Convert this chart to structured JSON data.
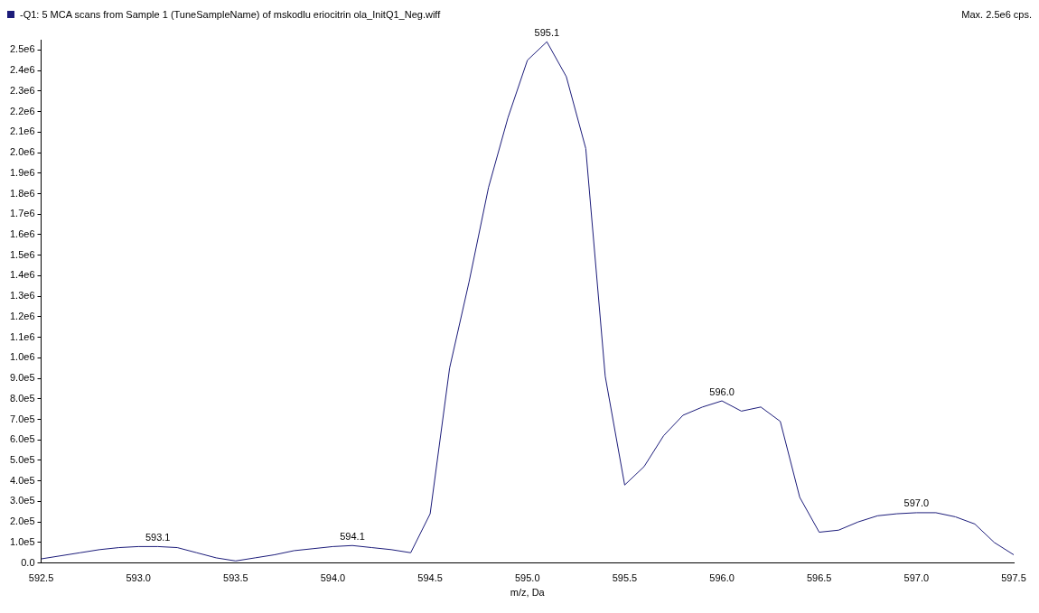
{
  "chart_data": {
    "type": "line",
    "title": "-Q1: 5 MCA scans from Sample 1 (TuneSampleName) of mskodlu eriocitrin ola_InitQ1_Neg.wiff",
    "xlabel": "m/z, Da",
    "x": [
      592.5,
      592.6,
      592.7,
      592.8,
      592.9,
      593.0,
      593.1,
      593.2,
      593.3,
      593.4,
      593.5,
      593.6,
      593.7,
      593.8,
      593.9,
      594.0,
      594.1,
      594.2,
      594.3,
      594.4,
      594.5,
      594.6,
      594.7,
      594.8,
      594.9,
      595.0,
      595.1,
      595.2,
      595.3,
      595.4,
      595.5,
      595.6,
      595.7,
      595.8,
      595.9,
      596.0,
      596.1,
      596.2,
      596.3,
      596.4,
      596.5,
      596.6,
      596.7,
      596.8,
      596.9,
      597.0,
      597.1,
      597.2,
      597.3,
      597.4,
      597.5
    ],
    "series": [
      {
        "color": "#1c1c7a",
        "values": [
          20000,
          35000,
          50000,
          65000,
          75000,
          80000,
          80000,
          75000,
          50000,
          25000,
          10000,
          25000,
          40000,
          60000,
          70000,
          80000,
          85000,
          75000,
          65000,
          50000,
          240000,
          950000,
          1370000,
          1830000,
          2170000,
          2450000,
          2540000,
          2370000,
          2020000,
          910000,
          380000,
          470000,
          620000,
          720000,
          760000,
          790000,
          740000,
          760000,
          690000,
          320000,
          150000,
          160000,
          200000,
          230000,
          240000,
          245000,
          245000,
          225000,
          190000,
          100000,
          40000
        ]
      }
    ],
    "xlim": [
      592.5,
      597.5
    ],
    "xticks": [
      592.5,
      {
        "value": 593,
        "label": "593.0"
      },
      593.5,
      {
        "value": 594,
        "label": "594.0"
      },
      594.5,
      {
        "value": 595,
        "label": "595.0"
      },
      595.5,
      {
        "value": 596,
        "label": "596.0"
      },
      596.5,
      {
        "value": 597,
        "label": "597.0"
      },
      597.5
    ],
    "ylim": [
      0,
      2550000
    ],
    "yticks": [
      {
        "value": 0,
        "label": "0.0"
      },
      {
        "value": 100000,
        "label": "1.0e5"
      },
      {
        "value": 200000,
        "label": "2.0e5"
      },
      {
        "value": 300000,
        "label": "3.0e5"
      },
      {
        "value": 400000,
        "label": "4.0e5"
      },
      {
        "value": 500000,
        "label": "5.0e5"
      },
      {
        "value": 600000,
        "label": "6.0e5"
      },
      {
        "value": 700000,
        "label": "7.0e5"
      },
      {
        "value": 800000,
        "label": "8.0e5"
      },
      {
        "value": 900000,
        "label": "9.0e5"
      },
      {
        "value": 1000000,
        "label": "1.0e6"
      },
      {
        "value": 1100000,
        "label": "1.1e6"
      },
      {
        "value": 1200000,
        "label": "1.2e6"
      },
      {
        "value": 1300000,
        "label": "1.3e6"
      },
      {
        "value": 1400000,
        "label": "1.4e6"
      },
      {
        "value": 1500000,
        "label": "1.5e6"
      },
      {
        "value": 1600000,
        "label": "1.6e6"
      },
      {
        "value": 1700000,
        "label": "1.7e6"
      },
      {
        "value": 1800000,
        "label": "1.8e6"
      },
      {
        "value": 1900000,
        "label": "1.9e6"
      },
      {
        "value": 2000000,
        "label": "2.0e6"
      },
      {
        "value": 2100000,
        "label": "2.1e6"
      },
      {
        "value": 2200000,
        "label": "2.2e6"
      },
      {
        "value": 2300000,
        "label": "2.3e6"
      },
      {
        "value": 2400000,
        "label": "2.4e6"
      },
      {
        "value": 2500000,
        "label": "2.5e6"
      }
    ],
    "grid": false,
    "legend": false,
    "marker": "none",
    "line_style": "solid",
    "annotations": [
      "Max. 2.5e6 cps.",
      {
        "text": "593.1",
        "x": 593.1,
        "y": 80000
      },
      {
        "text": "594.1",
        "x": 594.1,
        "y": 85000
      },
      {
        "text": "595.1",
        "x": 595.1,
        "y": 2540000
      },
      {
        "text": "596.0",
        "x": 596.0,
        "y": 790000
      },
      {
        "text": "597.0",
        "x": 597.0,
        "y": 245000
      }
    ]
  }
}
